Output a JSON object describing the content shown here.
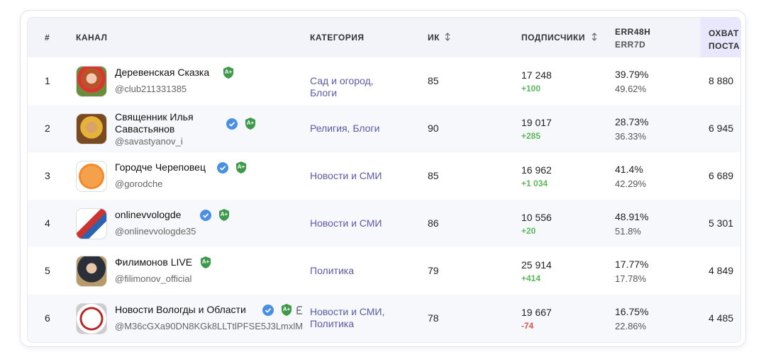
{
  "table": {
    "headers": {
      "num": "#",
      "channel": "КАНАЛ",
      "category": "КАТЕГОРИЯ",
      "ik": "ИК",
      "subscribers": "ПОДПИСЧИКИ",
      "err48": "ERR48H",
      "err7": "ERR7D",
      "reach": "ОХВАТ ПОСТА"
    },
    "rows": [
      {
        "num": "1",
        "name": "Деревенская Сказка",
        "handle": "@club211331385",
        "verified": false,
        "badge": "A+",
        "category": "Сад и огород, Блоги",
        "ik": "85",
        "subscribers": "17 248",
        "delta": "+100",
        "err48": "39.79%",
        "err7": "49.62%",
        "reach": "8 880"
      },
      {
        "num": "2",
        "name": "Священник Илья Савастьянов",
        "handle": "@savastyanov_i",
        "verified": true,
        "badge": "A+",
        "category": "Религия, Блоги",
        "ik": "90",
        "subscribers": "19 017",
        "delta": "+285",
        "err48": "28.73%",
        "err7": "36.33%",
        "reach": "6 945"
      },
      {
        "num": "3",
        "name": "Городче Череповец",
        "handle": "@gorodche",
        "verified": true,
        "badge": "A+",
        "category": "Новости и СМИ",
        "ik": "85",
        "subscribers": "16 962",
        "delta": "+1 034",
        "err48": "41.4%",
        "err7": "42.29%",
        "reach": "6 689"
      },
      {
        "num": "4",
        "name": "onlinevvologde",
        "handle": "@onlinevvologde35",
        "verified": true,
        "badge": "A+",
        "category": "Новости и СМИ",
        "ik": "86",
        "subscribers": "10 556",
        "delta": "+20",
        "err48": "48.91%",
        "err7": "51.8%",
        "reach": "5 301"
      },
      {
        "num": "5",
        "name": "Филимонов LIVE",
        "handle": "@filimonov_official",
        "verified": false,
        "badge": "A+",
        "category": "Политика",
        "ik": "79",
        "subscribers": "25 914",
        "delta": "+414",
        "err48": "17.77%",
        "err7": "17.78%",
        "reach": "4 849"
      },
      {
        "num": "6",
        "name": "Новости Вологды и Области",
        "handle": "@M36cGXa90DN8KGk8LLTtlPFSE5J3LmxlM",
        "verified": true,
        "badge": "A+",
        "category": "Новости и СМИ, Политика",
        "ik": "78",
        "subscribers": "19 667",
        "delta": "-74",
        "err48": "16.75%",
        "err7": "22.86%",
        "reach": "4 485"
      }
    ]
  }
}
